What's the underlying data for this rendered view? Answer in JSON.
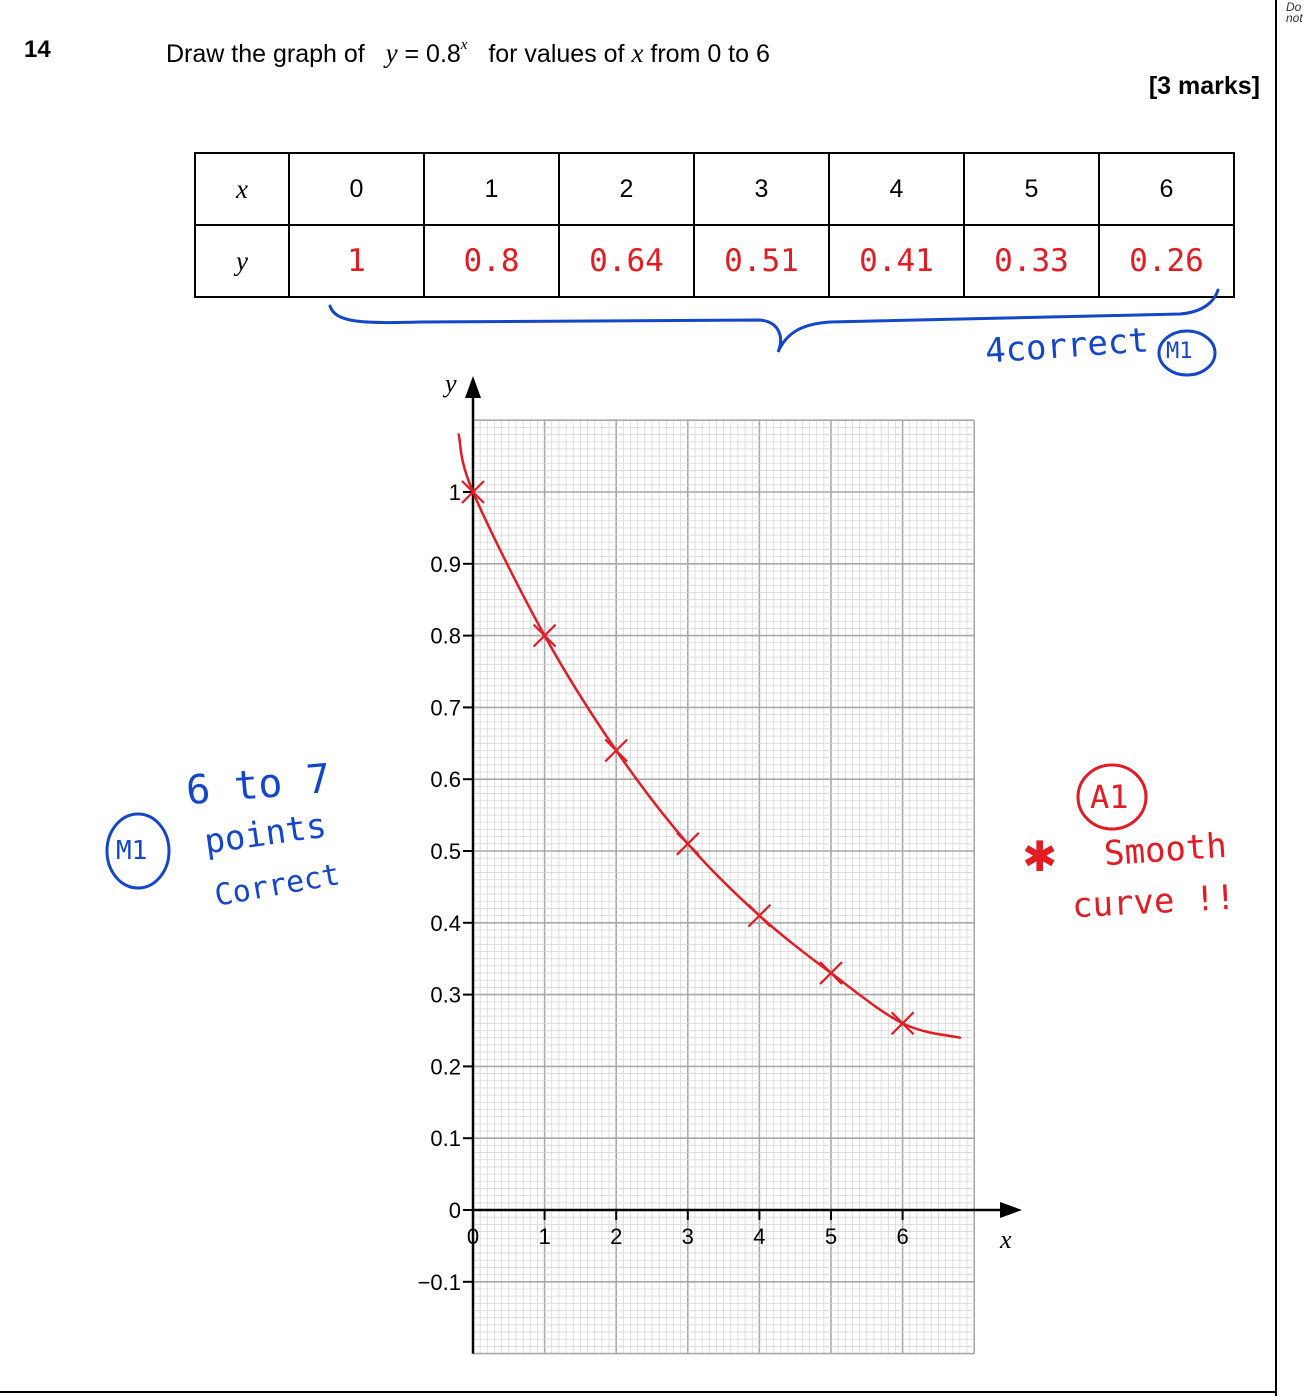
{
  "margin_note": "Do not write outside the box",
  "question": {
    "number": "14",
    "text_prefix": "Draw the graph of",
    "equation_lhs": "y",
    "equation_rhs": " = 0.8",
    "exponent": "x",
    "text_mid": "for values of",
    "text_var": "x",
    "text_suffix": "from 0 to 6",
    "marks": "[3 marks]"
  },
  "table": {
    "x_header": "x",
    "y_header": "y",
    "x_values": [
      "0",
      "1",
      "2",
      "3",
      "4",
      "5",
      "6"
    ],
    "y_values_handwritten": [
      "1",
      "0.8",
      "0.64",
      "0.51",
      "0.41",
      "0.33",
      "0.26"
    ]
  },
  "annotations": {
    "table_brace_note": "4correct",
    "table_brace_mark": "M1",
    "left_mark": "M1",
    "left_note_lines": [
      "6 to 7",
      "points",
      "Correct"
    ],
    "right_mark": "A1",
    "right_star": "✱",
    "right_note_lines": [
      "Smooth",
      "curve !!"
    ]
  },
  "colors": {
    "handwriting_red": "#e31b23",
    "handwriting_blue": "#1446c8",
    "grid_major": "#a8a8a8",
    "grid_minor": "#d6d6d6"
  },
  "chart_data": {
    "type": "line",
    "title": "",
    "xlabel": "x",
    "ylabel": "y",
    "xlim": [
      0,
      7
    ],
    "ylim": [
      -0.1,
      1.1
    ],
    "x_ticks": [
      "0",
      "1",
      "2",
      "3",
      "4",
      "5",
      "6"
    ],
    "y_ticks": [
      "−0.1",
      "0",
      "0.1",
      "0.2",
      "0.3",
      "0.4",
      "0.5",
      "0.6",
      "0.7",
      "0.8",
      "0.9",
      "1"
    ],
    "grid": true,
    "series": [
      {
        "style": "plotted points (crosses)",
        "x": [
          0,
          1,
          2,
          3,
          4,
          5,
          6
        ],
        "y": [
          1,
          0.8,
          0.64,
          0.51,
          0.41,
          0.33,
          0.26
        ]
      },
      {
        "style": "freehand smooth curve",
        "x": [
          -0.2,
          0,
          1,
          2,
          3,
          4,
          5,
          6,
          6.8
        ],
        "y": [
          1.08,
          1,
          0.8,
          0.64,
          0.51,
          0.41,
          0.33,
          0.26,
          0.24
        ]
      }
    ]
  }
}
